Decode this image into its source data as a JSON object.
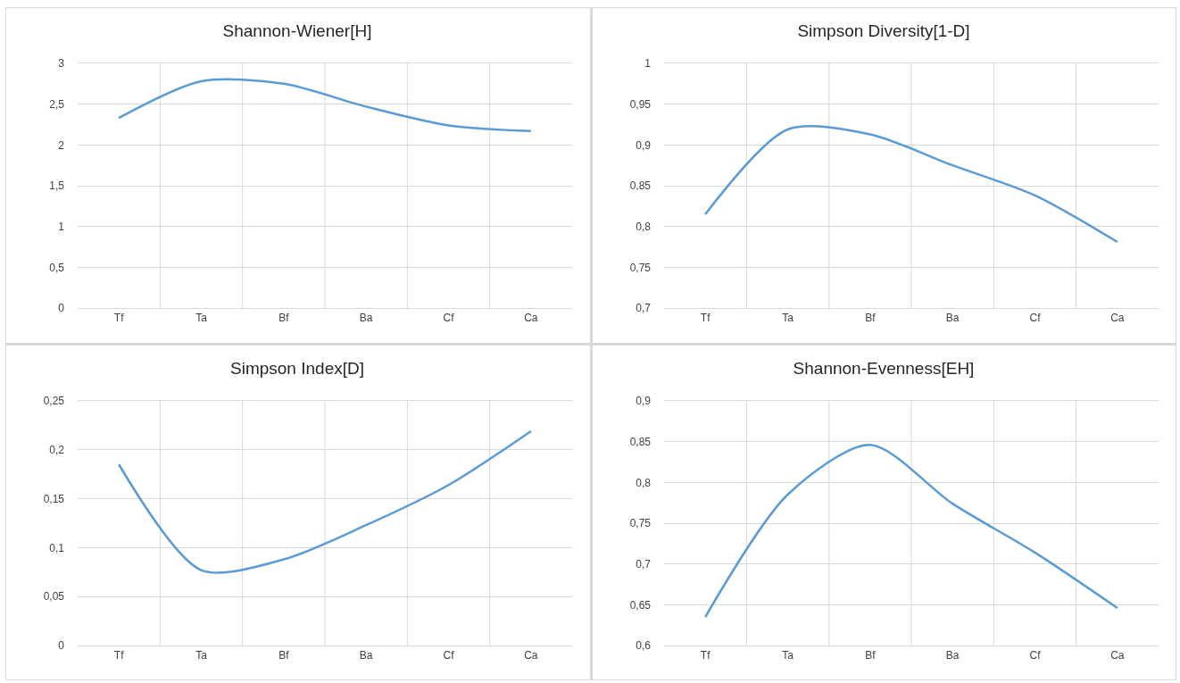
{
  "chart_data": [
    {
      "type": "line",
      "title": "Shannon-Wiener[H]",
      "categories": [
        "Tf",
        "Ta",
        "Bf",
        "Ba",
        "Cf",
        "Ca"
      ],
      "series": [
        {
          "color": "#5b9bd5",
          "values": [
            2.33,
            2.78,
            2.75,
            2.47,
            2.24,
            2.17
          ]
        }
      ],
      "ylim": [
        0,
        3
      ],
      "yticks": [
        0,
        {
          "value": 0.5,
          "label": "0,5"
        },
        1,
        {
          "value": 1.5,
          "label": "1,5"
        },
        2,
        {
          "value": 2.5,
          "label": "2,5"
        },
        3
      ],
      "grid": true,
      "marker": "none",
      "line_style": "solid"
    },
    {
      "type": "line",
      "title": "Simpson Diversity[1-D]",
      "categories": [
        "Tf",
        "Ta",
        "Bf",
        "Ba",
        "Cf",
        "Ca"
      ],
      "series": [
        {
          "color": "#5b9bd5",
          "values": [
            0.815,
            0.919,
            0.913,
            0.875,
            0.838,
            0.781
          ]
        }
      ],
      "ylim": [
        0.7,
        1
      ],
      "yticks": [
        {
          "value": 0.7,
          "label": "0,7"
        },
        {
          "value": 0.75,
          "label": "0,75"
        },
        {
          "value": 0.8,
          "label": "0,8"
        },
        {
          "value": 0.85,
          "label": "0,85"
        },
        {
          "value": 0.9,
          "label": "0,9"
        },
        {
          "value": 0.95,
          "label": "0,95"
        },
        1
      ],
      "grid": true,
      "marker": "none",
      "line_style": "solid"
    },
    {
      "type": "line",
      "title": "Simpson Index[D]",
      "categories": [
        "Tf",
        "Ta",
        "Bf",
        "Ba",
        "Cf",
        "Ca"
      ],
      "series": [
        {
          "color": "#5b9bd5",
          "values": [
            0.185,
            0.077,
            0.088,
            0.123,
            0.164,
            0.219
          ]
        }
      ],
      "ylim": [
        0,
        0.25
      ],
      "yticks": [
        0,
        {
          "value": 0.05,
          "label": "0,05"
        },
        {
          "value": 0.1,
          "label": "0,1"
        },
        {
          "value": 0.15,
          "label": "0,15"
        },
        {
          "value": 0.2,
          "label": "0,2"
        },
        {
          "value": 0.25,
          "label": "0,25"
        }
      ],
      "grid": true,
      "marker": "none",
      "line_style": "solid"
    },
    {
      "type": "line",
      "title": "Shannon-Evenness[EH]",
      "categories": [
        "Tf",
        "Ta",
        "Bf",
        "Ba",
        "Cf",
        "Ca"
      ],
      "series": [
        {
          "color": "#5b9bd5",
          "values": [
            0.635,
            0.785,
            0.846,
            0.774,
            0.714,
            0.646
          ]
        }
      ],
      "ylim": [
        0.6,
        0.9
      ],
      "yticks": [
        {
          "value": 0.6,
          "label": "0,6"
        },
        {
          "value": 0.65,
          "label": "0,65"
        },
        {
          "value": 0.7,
          "label": "0,7"
        },
        {
          "value": 0.75,
          "label": "0,75"
        },
        {
          "value": 0.8,
          "label": "0,8"
        },
        {
          "value": 0.85,
          "label": "0,85"
        },
        {
          "value": 0.9,
          "label": "0,9"
        }
      ],
      "grid": true,
      "marker": "none",
      "line_style": "solid"
    }
  ]
}
